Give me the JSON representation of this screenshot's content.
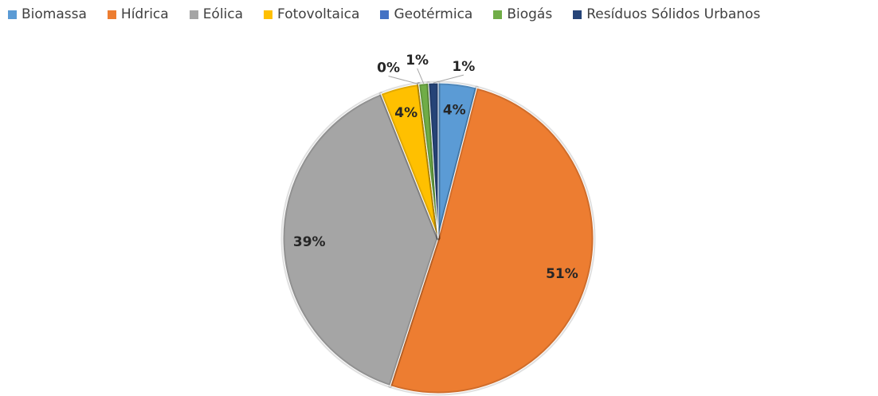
{
  "chart_data": {
    "type": "pie",
    "categories": [
      "Biomassa",
      "Hídrica",
      "Eólica",
      "Fotovoltaica",
      "Geotérmica",
      "Biogás",
      "Resíduos Sólidos Urbanos"
    ],
    "values": [
      4,
      51,
      39,
      4,
      0,
      1,
      1
    ],
    "value_labels": [
      "4%",
      "51%",
      "39%",
      "4%",
      "0%",
      "1%",
      "1%"
    ],
    "colors": [
      "#5b9bd5",
      "#ed7d31",
      "#a5a5a5",
      "#ffc000",
      "#4472c4",
      "#70ad47",
      "#264478"
    ]
  }
}
